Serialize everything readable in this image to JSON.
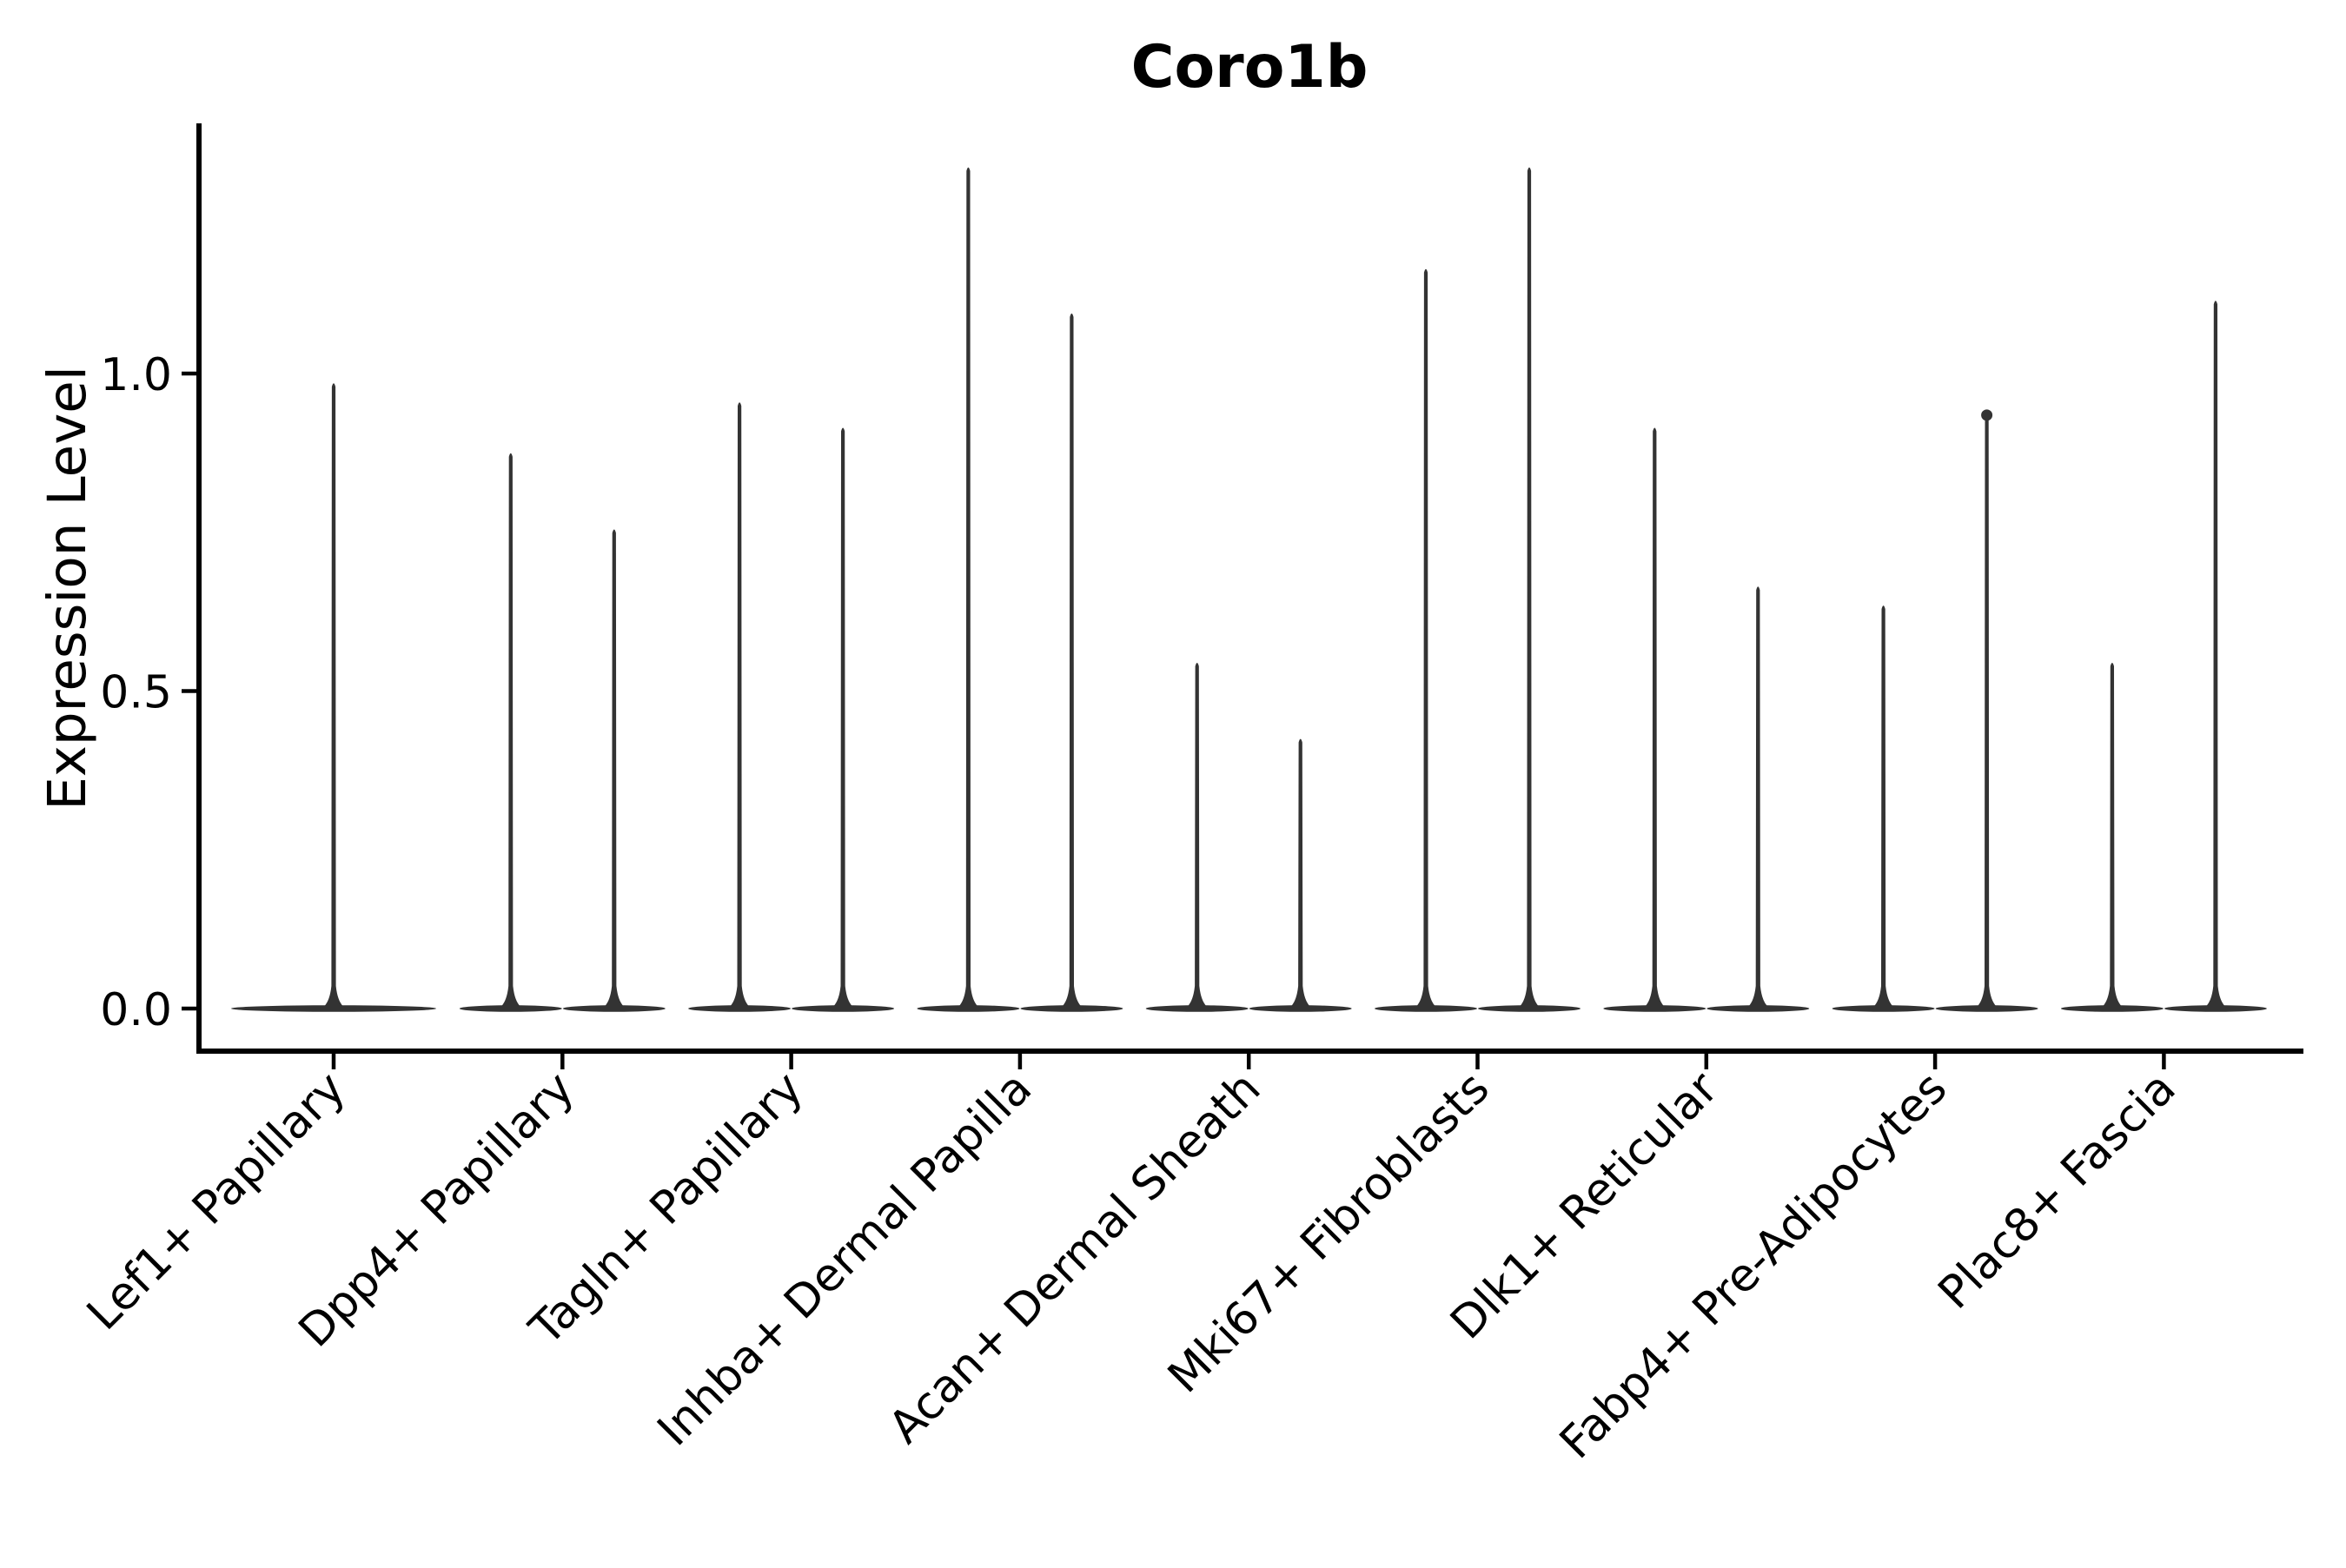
{
  "chart_data": {
    "type": "violin",
    "title": "Coro1b",
    "ylabel": "Expression Level",
    "xlabel": "",
    "legend": "none",
    "grid": false,
    "categories": [
      "Lef1+ Papillary",
      "Dpp4+ Papillary",
      "Tagln+ Papillary",
      "Inhba+ Dermal Papilla",
      "Acan+ Dermal Sheath",
      "Mki67+ Fibroblasts",
      "Dlk1+ Reticular",
      "Fabp4+ Pre-Adipocytes",
      "Plac8+ Fascia"
    ],
    "yticks": [
      {
        "label": "0.0",
        "value": 0.0
      },
      {
        "label": "0.5",
        "value": 0.5
      },
      {
        "label": "1.0",
        "value": 1.0
      }
    ],
    "ylim": [
      -0.07,
      1.39
    ],
    "violin_style": "thin-spike with flat base at zero (most cells zero expression)",
    "violins": [
      {
        "category_index": 0,
        "position": "center",
        "max": 0.99
      },
      {
        "category_index": 1,
        "position": "left",
        "max": 0.88
      },
      {
        "category_index": 1,
        "position": "right",
        "max": 0.76
      },
      {
        "category_index": 2,
        "position": "left",
        "max": 0.96
      },
      {
        "category_index": 2,
        "position": "right",
        "max": 0.92
      },
      {
        "category_index": 3,
        "position": "left",
        "max": 1.33
      },
      {
        "category_index": 3,
        "position": "right",
        "max": 1.1
      },
      {
        "category_index": 4,
        "position": "left",
        "max": 0.55
      },
      {
        "category_index": 4,
        "position": "right",
        "max": 0.43
      },
      {
        "category_index": 5,
        "position": "left",
        "max": 1.17
      },
      {
        "category_index": 5,
        "position": "right",
        "max": 1.33
      },
      {
        "category_index": 6,
        "position": "left",
        "max": 0.92
      },
      {
        "category_index": 6,
        "position": "right",
        "max": 0.67
      },
      {
        "category_index": 7,
        "position": "left",
        "max": 0.64
      },
      {
        "category_index": 7,
        "position": "right",
        "max": 0.94,
        "tip_dot": true
      },
      {
        "category_index": 8,
        "position": "left",
        "max": 0.55
      },
      {
        "category_index": 8,
        "position": "right",
        "max": 1.12
      }
    ],
    "colors": {
      "violin": "#333333",
      "axis": "#000000",
      "text": "#000000",
      "background": "#ffffff"
    }
  }
}
